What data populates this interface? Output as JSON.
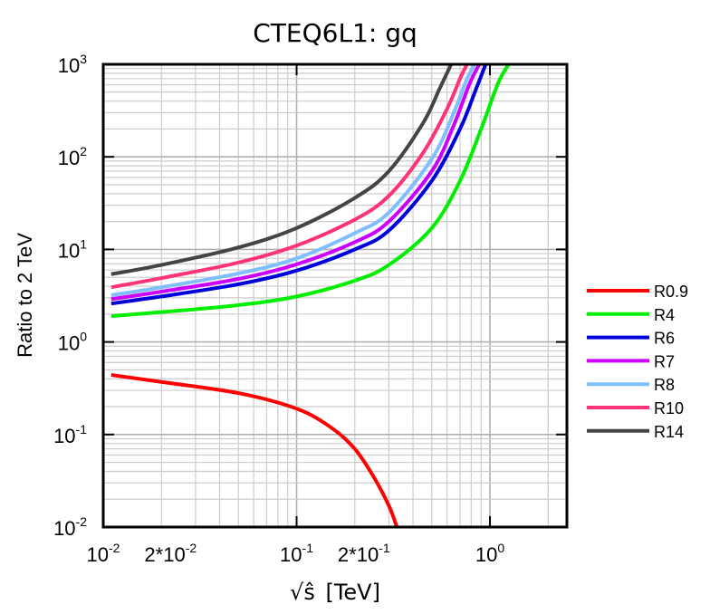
{
  "chart_data": {
    "type": "line",
    "title": "CTEQ6L1: gq",
    "xlabel": "[TeV]",
    "xlabel_symbol": "√ŝ",
    "ylabel": "Ratio to 2 TeV",
    "xscale": "log",
    "yscale": "log",
    "xlim": [
      0.01,
      2.5
    ],
    "ylim": [
      0.01,
      1000
    ],
    "grid": true,
    "legend_position": "right",
    "x_tick_labels": [
      {
        "value": 0.01,
        "base": "10",
        "exp": "-2"
      },
      {
        "value": 0.02,
        "base": "2*10",
        "exp": "-2"
      },
      {
        "value": 0.1,
        "base": "10",
        "exp": "-1"
      },
      {
        "value": 0.2,
        "base": "2*10",
        "exp": "-1"
      },
      {
        "value": 1,
        "base": "10",
        "exp": "0"
      }
    ],
    "y_tick_labels": [
      {
        "value": 0.01,
        "base": "10",
        "exp": "-2"
      },
      {
        "value": 0.1,
        "base": "10",
        "exp": "-1"
      },
      {
        "value": 1,
        "base": "10",
        "exp": "0"
      },
      {
        "value": 10,
        "base": "10",
        "exp": "1"
      },
      {
        "value": 100,
        "base": "10",
        "exp": "2"
      },
      {
        "value": 1000,
        "base": "10",
        "exp": "3"
      }
    ],
    "series": [
      {
        "name": "R0.9",
        "color": "#ff0000",
        "x": [
          0.011,
          0.02,
          0.05,
          0.1,
          0.15,
          0.2,
          0.25,
          0.3,
          0.33
        ],
        "y": [
          0.44,
          0.37,
          0.28,
          0.19,
          0.12,
          0.07,
          0.035,
          0.017,
          0.01
        ]
      },
      {
        "name": "R4",
        "color": "#00ee00",
        "x": [
          0.011,
          0.02,
          0.05,
          0.1,
          0.2,
          0.3,
          0.5,
          0.7,
          0.9,
          1.1,
          1.25
        ],
        "y": [
          1.9,
          2.1,
          2.5,
          3.1,
          4.6,
          6.8,
          17,
          55,
          200,
          620,
          1000
        ]
      },
      {
        "name": "R6",
        "color": "#0000dd",
        "x": [
          0.011,
          0.02,
          0.05,
          0.1,
          0.2,
          0.3,
          0.5,
          0.7,
          0.85,
          0.95
        ],
        "y": [
          2.6,
          3.1,
          4.2,
          5.9,
          10,
          16,
          55,
          200,
          550,
          1000
        ]
      },
      {
        "name": "R7",
        "color": "#cc00ff",
        "x": [
          0.011,
          0.02,
          0.05,
          0.1,
          0.2,
          0.3,
          0.5,
          0.65,
          0.78,
          0.88
        ],
        "y": [
          2.9,
          3.5,
          4.8,
          6.9,
          12,
          20,
          70,
          220,
          600,
          1000
        ]
      },
      {
        "name": "R8",
        "color": "#80bfff",
        "x": [
          0.011,
          0.02,
          0.05,
          0.1,
          0.2,
          0.3,
          0.5,
          0.65,
          0.75,
          0.83
        ],
        "y": [
          3.2,
          3.9,
          5.5,
          8,
          15,
          25,
          95,
          300,
          650,
          1000
        ]
      },
      {
        "name": "R10",
        "color": "#ff3377",
        "x": [
          0.011,
          0.02,
          0.05,
          0.1,
          0.2,
          0.3,
          0.45,
          0.6,
          0.7,
          0.76
        ],
        "y": [
          3.9,
          4.9,
          7.2,
          11,
          21,
          38,
          110,
          330,
          700,
          1000
        ]
      },
      {
        "name": "R14",
        "color": "#444444",
        "x": [
          0.011,
          0.02,
          0.05,
          0.1,
          0.2,
          0.3,
          0.45,
          0.55,
          0.63
        ],
        "y": [
          5.4,
          6.8,
          10.5,
          17,
          36,
          70,
          230,
          550,
          1000
        ]
      }
    ]
  }
}
